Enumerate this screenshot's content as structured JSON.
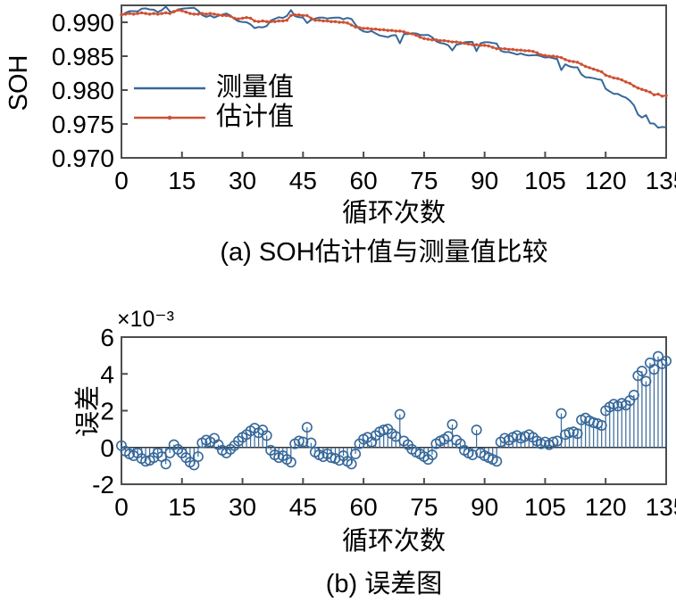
{
  "figure": {
    "subplot_a": {
      "caption": "(a) SOH估计值与测量值比较",
      "xlabel": "循环次数",
      "ylabel": "SOH",
      "legend": {
        "measured_label": "测量值",
        "estimated_label": "估计值"
      }
    },
    "subplot_b": {
      "caption": "(b) 误差图",
      "xlabel": "循环次数",
      "ylabel": "误差",
      "multiplier_label": "×10⁻³"
    },
    "colors": {
      "measured_blue": "#36689B",
      "estimated_red": "#CE5135",
      "frame_gray": "#4D4D4D",
      "zero_line": "#333333",
      "text_black": "#000000"
    }
  },
  "chart_data": [
    {
      "type": "line",
      "title": "(a) SOH估计值与测量值比较",
      "xlabel": "循环次数",
      "ylabel": "SOH",
      "x_start": 0,
      "x_step": 1,
      "n_points": 136,
      "xlim": [
        0,
        135
      ],
      "xticks": [
        0,
        15,
        30,
        45,
        60,
        75,
        90,
        105,
        120,
        135
      ],
      "ylim": [
        0.97,
        0.9925
      ],
      "yticks": [
        0.97,
        0.975,
        0.98,
        0.985,
        0.99
      ],
      "grid": false,
      "legend_position": "inside-left",
      "series": [
        {
          "name": "测量值",
          "color": "#36689B",
          "marker": "none",
          "values": [
            0.991,
            0.9914,
            0.99165,
            0.99165,
            0.9916,
            0.992,
            0.99205,
            0.9919,
            0.99185,
            0.9915,
            0.9918,
            0.9923,
            0.9916,
            0.99145,
            0.9919,
            0.992,
            0.99205,
            0.9921,
            0.99215,
            0.9917,
            0.99105,
            0.9908,
            0.991,
            0.9907,
            0.99095,
            0.99115,
            0.9913,
            0.991,
            0.9905,
            0.99015,
            0.99005,
            0.99,
            0.9897,
            0.98915,
            0.9893,
            0.98925,
            0.98945,
            0.99025,
            0.9905,
            0.99075,
            0.99065,
            0.99095,
            0.9918,
            0.9909,
            0.99075,
            0.9907,
            0.9899,
            0.99035,
            0.99055,
            0.9907,
            0.9907,
            0.99055,
            0.99065,
            0.9907,
            0.9907,
            0.99045,
            0.99065,
            0.9905,
            0.98965,
            0.989,
            0.98865,
            0.98855,
            0.9887,
            0.98835,
            0.98805,
            0.98795,
            0.9878,
            0.98805,
            0.9881,
            0.9869,
            0.98825,
            0.98825,
            0.9884,
            0.98835,
            0.98815,
            0.9881,
            0.98815,
            0.9878,
            0.9872,
            0.98695,
            0.98685,
            0.9866,
            0.98585,
            0.9867,
            0.9868,
            0.98705,
            0.9871,
            0.9871,
            0.98575,
            0.9869,
            0.98705,
            0.98705,
            0.98695,
            0.98685,
            0.9858,
            0.9856,
            0.9856,
            0.98545,
            0.98525,
            0.9854,
            0.9852,
            0.9851,
            0.98515,
            0.98515,
            0.985,
            0.9848,
            0.98485,
            0.9847,
            0.98455,
            0.98295,
            0.9838,
            0.9835,
            0.98335,
            0.98335,
            0.9823,
            0.9819,
            0.98185,
            0.98175,
            0.9816,
            0.9815,
            0.9802,
            0.9798,
            0.97945,
            0.97945,
            0.9791,
            0.9789,
            0.97845,
            0.97775,
            0.9764,
            0.97595,
            0.9763,
            0.9751,
            0.97505,
            0.97445,
            0.97455,
            0.9745
          ]
        },
        {
          "name": "估计值",
          "color": "#CE5135",
          "marker": "dot",
          "values": [
            0.9911,
            0.9912,
            0.9913,
            0.9912,
            0.9913,
            0.9914,
            0.9913,
            0.9912,
            0.9913,
            0.9912,
            0.9913,
            0.9914,
            0.9913,
            0.9916,
            0.9918,
            0.9917,
            0.9915,
            0.9913,
            0.9912,
            0.9912,
            0.9913,
            0.9912,
            0.9913,
            0.9912,
            0.9911,
            0.991,
            0.991,
            0.9909,
            0.9906,
            0.9905,
            0.9906,
            0.9907,
            0.9906,
            0.9902,
            0.9901,
            0.9902,
            0.9901,
            0.9901,
            0.9901,
            0.9902,
            0.9902,
            0.9903,
            0.991,
            0.9911,
            0.9911,
            0.991,
            0.991,
            0.9906,
            0.9903,
            0.9903,
            0.9902,
            0.9902,
            0.9901,
            0.9901,
            0.99,
            0.99,
            0.9899,
            0.9896,
            0.9893,
            0.9892,
            0.9891,
            0.9891,
            0.989,
            0.989,
            0.9889,
            0.9889,
            0.9888,
            0.9888,
            0.9887,
            0.9887,
            0.9886,
            0.9884,
            0.9883,
            0.9881,
            0.9878,
            0.9876,
            0.9875,
            0.9874,
            0.9874,
            0.9873,
            0.9873,
            0.9872,
            0.9871,
            0.9871,
            0.987,
            0.9869,
            0.9868,
            0.9867,
            0.9867,
            0.9866,
            0.9866,
            0.9865,
            0.9863,
            0.9861,
            0.9861,
            0.9861,
            0.986,
            0.986,
            0.9859,
            0.9859,
            0.9858,
            0.9858,
            0.9857,
            0.9855,
            0.9852,
            0.9851,
            0.985,
            0.985,
            0.9849,
            0.9848,
            0.9845,
            0.9843,
            0.9842,
            0.9841,
            0.9838,
            0.9835,
            0.9833,
            0.9831,
            0.9829,
            0.9827,
            0.9822,
            0.982,
            0.9818,
            0.9817,
            0.9815,
            0.9812,
            0.981,
            0.9806,
            0.9803,
            0.9801,
            0.9799,
            0.9797,
            0.9793,
            0.9794,
            0.9791,
            0.9792
          ]
        }
      ]
    },
    {
      "type": "stem",
      "title": "(b) 误差图",
      "xlabel": "循环次数",
      "ylabel": "误差",
      "multiplier_label": "×10⁻³",
      "value_scale": 0.001,
      "x_start": 0,
      "x_step": 1,
      "n_points": 136,
      "xlim": [
        0,
        135
      ],
      "xticks": [
        0,
        15,
        30,
        45,
        60,
        75,
        90,
        105,
        120,
        135
      ],
      "ylim_scaled": [
        -2,
        6
      ],
      "yticks_scaled": [
        -2,
        0,
        2,
        4,
        6
      ],
      "grid": false,
      "marker": "open-circle",
      "values_scaled": [
        0.1,
        -0.2,
        -0.35,
        -0.45,
        -0.3,
        -0.6,
        -0.75,
        -0.7,
        -0.55,
        -0.3,
        -0.5,
        -0.9,
        -0.3,
        0.15,
        -0.1,
        -0.3,
        -0.55,
        -0.8,
        -0.95,
        -0.5,
        0.25,
        0.4,
        0.3,
        0.5,
        0.15,
        -0.15,
        -0.3,
        -0.1,
        0.1,
        0.35,
        0.55,
        0.7,
        0.9,
        1.05,
        0.8,
        0.95,
        0.65,
        -0.15,
        -0.4,
        -0.55,
        -0.45,
        -0.65,
        -0.8,
        0.2,
        0.35,
        0.3,
        1.1,
        0.25,
        -0.25,
        -0.4,
        -0.5,
        -0.35,
        -0.55,
        -0.6,
        -0.7,
        -0.45,
        -0.75,
        -0.9,
        -0.35,
        0.2,
        0.45,
        0.55,
        0.3,
        0.65,
        0.85,
        0.95,
        1.0,
        0.75,
        0.6,
        1.8,
        0.35,
        0.15,
        -0.1,
        -0.25,
        -0.35,
        -0.5,
        -0.65,
        -0.4,
        0.2,
        0.35,
        0.45,
        0.6,
        1.25,
        0.4,
        0.2,
        -0.15,
        -0.3,
        -0.4,
        0.95,
        -0.3,
        -0.45,
        -0.55,
        -0.65,
        -0.75,
        0.3,
        0.5,
        0.4,
        0.55,
        0.65,
        0.5,
        0.6,
        0.7,
        0.55,
        0.35,
        0.2,
        0.3,
        0.15,
        0.3,
        0.35,
        1.85,
        0.7,
        0.8,
        0.85,
        0.75,
        1.5,
        1.6,
        1.45,
        1.35,
        1.3,
        1.2,
        2.0,
        2.2,
        2.35,
        2.25,
        2.4,
        2.3,
        2.55,
        2.85,
        3.9,
        4.15,
        3.6,
        4.6,
        4.25,
        4.95,
        4.55,
        4.7
      ]
    }
  ]
}
